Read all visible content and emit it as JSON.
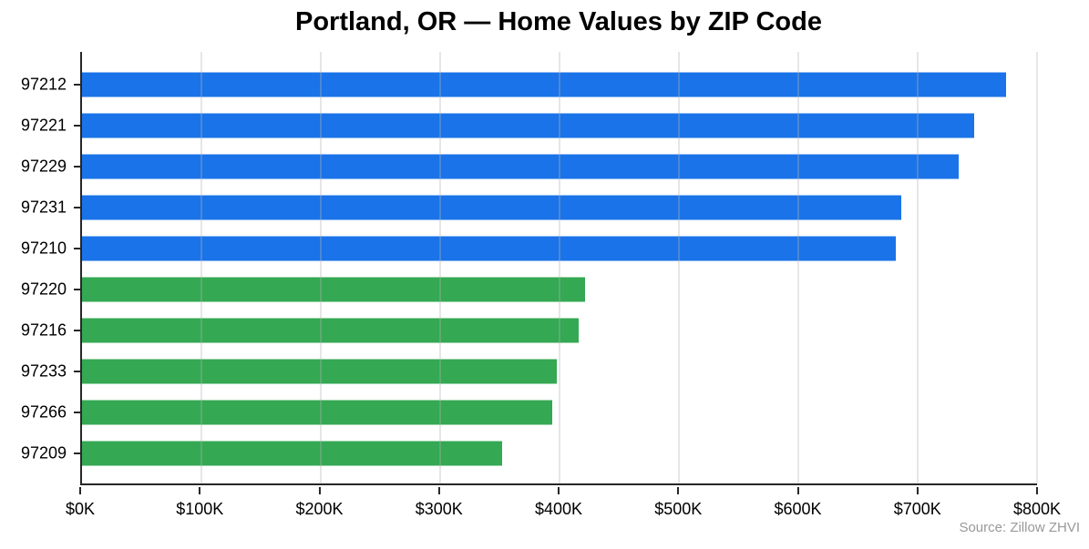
{
  "chart_data": {
    "type": "bar",
    "orientation": "horizontal",
    "title": "Portland, OR — Home Values by ZIP Code",
    "source_note": "Source: Zillow ZHVI",
    "categories": [
      "97212",
      "97221",
      "97229",
      "97231",
      "97210",
      "97220",
      "97216",
      "97233",
      "97266",
      "97209"
    ],
    "values": [
      774,
      747,
      734,
      686,
      682,
      421,
      416,
      398,
      394,
      352
    ],
    "values_unit": "thousand USD (ZHVI home value)",
    "bar_colors": [
      "#1a73e8",
      "#1a73e8",
      "#1a73e8",
      "#1a73e8",
      "#1a73e8",
      "#34a853",
      "#34a853",
      "#34a853",
      "#34a853",
      "#34a853"
    ],
    "color_groups": {
      "top_five_zips": "#1a73e8",
      "bottom_five_zips": "#34a853"
    },
    "xlabel": "",
    "ylabel": "",
    "xlim": [
      0,
      800
    ],
    "xtick_labels": [
      "$0K",
      "$100K",
      "$200K",
      "$300K",
      "$400K",
      "$500K",
      "$600K",
      "$700K",
      "$800K"
    ],
    "grid": "vertical gridlines, drawn semi-transparent over bars",
    "legend": "none",
    "colors": {
      "axis": "#262626",
      "gridline": "#e7e7e7",
      "background": "#ffffff",
      "title_text": "#000000",
      "tick_text": "#000000",
      "source_text": "#999999"
    }
  }
}
